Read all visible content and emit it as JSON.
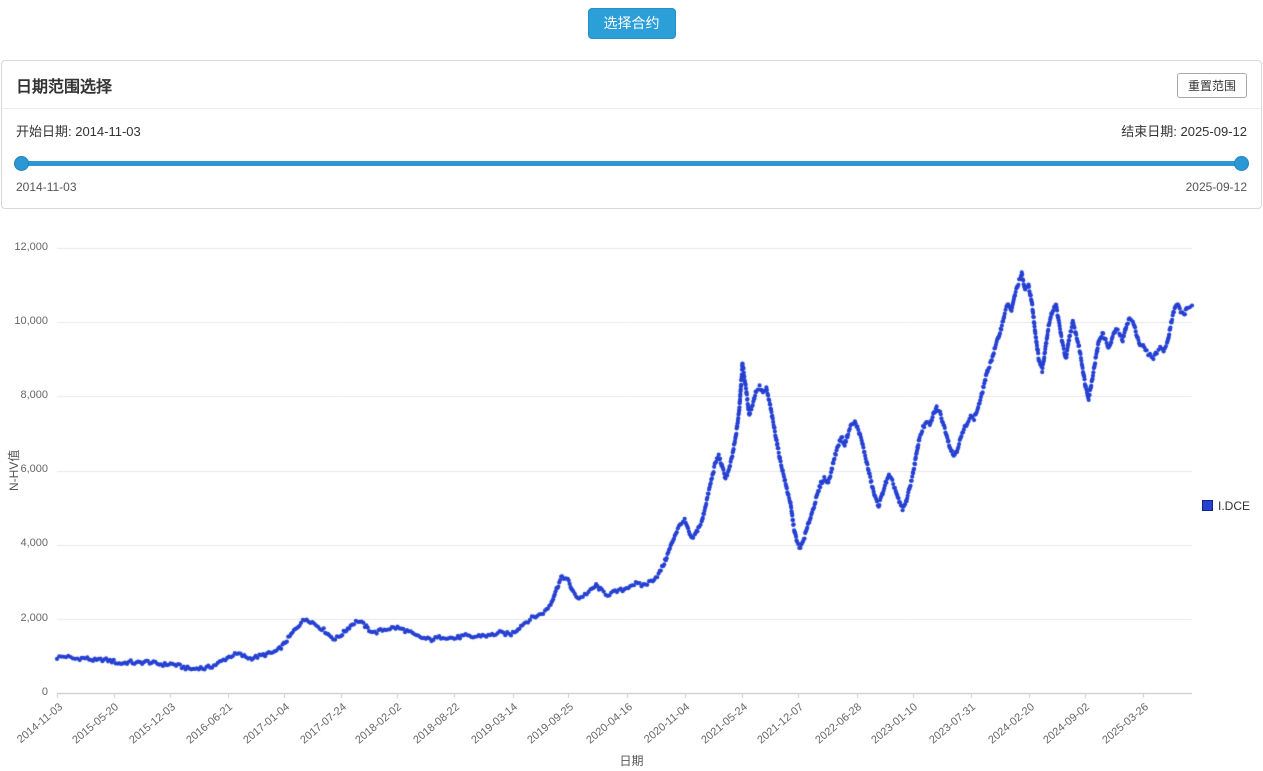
{
  "toolbar": {
    "select_contract_label": "选择合约"
  },
  "date_panel": {
    "title": "日期范围选择",
    "reset_label": "重置范围",
    "start_date_label": "开始日期: 2014-11-03",
    "end_date_label": "结束日期: 2025-09-12",
    "slider_left_label": "2014-11-03",
    "slider_right_label": "2025-09-12",
    "accent_color": "#2b98d5"
  },
  "chart_data": {
    "type": "scatter",
    "title": "",
    "xlabel": "日期",
    "ylabel": "N-HV值",
    "ylim": [
      0,
      12000
    ],
    "grid": true,
    "legend_position": "right",
    "yticks": [
      {
        "v": 0,
        "label": "0"
      },
      {
        "v": 2000,
        "label": "2,000"
      },
      {
        "v": 4000,
        "label": "4,000"
      },
      {
        "v": 6000,
        "label": "6,000"
      },
      {
        "v": 8000,
        "label": "8,000"
      },
      {
        "v": 10000,
        "label": "10,000"
      },
      {
        "v": 12000,
        "label": "12,000"
      }
    ],
    "xticks": [
      {
        "pos": 0.0,
        "label": "2014-11-03"
      },
      {
        "pos": 0.0499,
        "label": "2015-05-20"
      },
      {
        "pos": 0.0996,
        "label": "2015-12-03"
      },
      {
        "pos": 0.1503,
        "label": "2016-06-21"
      },
      {
        "pos": 0.2,
        "label": "2017-01-04"
      },
      {
        "pos": 0.2506,
        "label": "2017-07-24"
      },
      {
        "pos": 0.2993,
        "label": "2018-02-02"
      },
      {
        "pos": 0.35,
        "label": "2018-08-22"
      },
      {
        "pos": 0.4014,
        "label": "2019-03-14"
      },
      {
        "pos": 0.4506,
        "label": "2019-09-25"
      },
      {
        "pos": 0.502,
        "label": "2020-04-16"
      },
      {
        "pos": 0.553,
        "label": "2020-11-04"
      },
      {
        "pos": 0.6036,
        "label": "2021-05-24"
      },
      {
        "pos": 0.6533,
        "label": "2021-12-07"
      },
      {
        "pos": 0.7045,
        "label": "2022-06-28"
      },
      {
        "pos": 0.7539,
        "label": "2023-01-10"
      },
      {
        "pos": 0.8049,
        "label": "2023-07-31"
      },
      {
        "pos": 0.8563,
        "label": "2024-02-20"
      },
      {
        "pos": 0.9055,
        "label": "2024-09-02"
      },
      {
        "pos": 0.9571,
        "label": "2025-03-26"
      }
    ],
    "legend": [
      {
        "name": "I.DCE",
        "color": "#2540d2",
        "border": "#13257e"
      }
    ],
    "series": [
      {
        "name": "I.DCE",
        "color": "#2540d2",
        "x_range_labels": [
          "2014-11-03",
          "2025-09-12"
        ],
        "points": [
          [
            0.0,
            950
          ],
          [
            0.004,
            975
          ],
          [
            0.008,
            990
          ],
          [
            0.012,
            945
          ],
          [
            0.016,
            920
          ],
          [
            0.02,
            935
          ],
          [
            0.025,
            940
          ],
          [
            0.03,
            900
          ],
          [
            0.035,
            870
          ],
          [
            0.04,
            905
          ],
          [
            0.045,
            880
          ],
          [
            0.05,
            850
          ],
          [
            0.055,
            790
          ],
          [
            0.06,
            815
          ],
          [
            0.065,
            835
          ],
          [
            0.07,
            800
          ],
          [
            0.075,
            825
          ],
          [
            0.08,
            845
          ],
          [
            0.085,
            805
          ],
          [
            0.09,
            780
          ],
          [
            0.095,
            765
          ],
          [
            0.1,
            785
          ],
          [
            0.105,
            755
          ],
          [
            0.11,
            705
          ],
          [
            0.115,
            665
          ],
          [
            0.12,
            640
          ],
          [
            0.125,
            685
          ],
          [
            0.13,
            660
          ],
          [
            0.135,
            705
          ],
          [
            0.14,
            765
          ],
          [
            0.145,
            855
          ],
          [
            0.15,
            950
          ],
          [
            0.155,
            1020
          ],
          [
            0.16,
            1050
          ],
          [
            0.165,
            985
          ],
          [
            0.17,
            935
          ],
          [
            0.175,
            965
          ],
          [
            0.18,
            1005
          ],
          [
            0.185,
            1050
          ],
          [
            0.19,
            1085
          ],
          [
            0.195,
            1155
          ],
          [
            0.2,
            1320
          ],
          [
            0.205,
            1520
          ],
          [
            0.21,
            1720
          ],
          [
            0.215,
            1900
          ],
          [
            0.22,
            2000
          ],
          [
            0.225,
            1905
          ],
          [
            0.23,
            1800
          ],
          [
            0.235,
            1700
          ],
          [
            0.24,
            1555
          ],
          [
            0.245,
            1450
          ],
          [
            0.25,
            1555
          ],
          [
            0.255,
            1705
          ],
          [
            0.26,
            1855
          ],
          [
            0.265,
            1950
          ],
          [
            0.27,
            1850
          ],
          [
            0.275,
            1705
          ],
          [
            0.28,
            1625
          ],
          [
            0.285,
            1680
          ],
          [
            0.29,
            1725
          ],
          [
            0.295,
            1750
          ],
          [
            0.3,
            1760
          ],
          [
            0.305,
            1705
          ],
          [
            0.31,
            1650
          ],
          [
            0.315,
            1555
          ],
          [
            0.32,
            1500
          ],
          [
            0.325,
            1460
          ],
          [
            0.33,
            1440
          ],
          [
            0.335,
            1480
          ],
          [
            0.34,
            1520
          ],
          [
            0.345,
            1500
          ],
          [
            0.35,
            1470
          ],
          [
            0.355,
            1510
          ],
          [
            0.36,
            1540
          ],
          [
            0.365,
            1500
          ],
          [
            0.37,
            1525
          ],
          [
            0.375,
            1560
          ],
          [
            0.38,
            1540
          ],
          [
            0.385,
            1580
          ],
          [
            0.39,
            1620
          ],
          [
            0.395,
            1600
          ],
          [
            0.4,
            1585
          ],
          [
            0.405,
            1700
          ],
          [
            0.41,
            1850
          ],
          [
            0.415,
            1950
          ],
          [
            0.42,
            2050
          ],
          [
            0.425,
            2105
          ],
          [
            0.43,
            2200
          ],
          [
            0.435,
            2400
          ],
          [
            0.44,
            2800
          ],
          [
            0.445,
            3150
          ],
          [
            0.45,
            3050
          ],
          [
            0.455,
            2700
          ],
          [
            0.46,
            2550
          ],
          [
            0.465,
            2650
          ],
          [
            0.47,
            2755
          ],
          [
            0.475,
            2900
          ],
          [
            0.48,
            2755
          ],
          [
            0.485,
            2650
          ],
          [
            0.49,
            2705
          ],
          [
            0.495,
            2755
          ],
          [
            0.5,
            2800
          ],
          [
            0.505,
            2900
          ],
          [
            0.51,
            2950
          ],
          [
            0.515,
            2900
          ],
          [
            0.52,
            2950
          ],
          [
            0.525,
            3050
          ],
          [
            0.53,
            3200
          ],
          [
            0.535,
            3500
          ],
          [
            0.54,
            3900
          ],
          [
            0.545,
            4300
          ],
          [
            0.55,
            4600
          ],
          [
            0.553,
            4650
          ],
          [
            0.556,
            4400
          ],
          [
            0.559,
            4150
          ],
          [
            0.562,
            4250
          ],
          [
            0.565,
            4450
          ],
          [
            0.568,
            4600
          ],
          [
            0.571,
            5000
          ],
          [
            0.574,
            5400
          ],
          [
            0.577,
            5800
          ],
          [
            0.58,
            6200
          ],
          [
            0.583,
            6400
          ],
          [
            0.586,
            6100
          ],
          [
            0.589,
            5800
          ],
          [
            0.592,
            6000
          ],
          [
            0.595,
            6400
          ],
          [
            0.598,
            6900
          ],
          [
            0.601,
            7600
          ],
          [
            0.604,
            8900
          ],
          [
            0.607,
            8200
          ],
          [
            0.61,
            7500
          ],
          [
            0.613,
            7800
          ],
          [
            0.616,
            8150
          ],
          [
            0.619,
            8250
          ],
          [
            0.622,
            8100
          ],
          [
            0.625,
            8200
          ],
          [
            0.628,
            7800
          ],
          [
            0.631,
            7300
          ],
          [
            0.634,
            6800
          ],
          [
            0.637,
            6300
          ],
          [
            0.64,
            5900
          ],
          [
            0.643,
            5500
          ],
          [
            0.646,
            5150
          ],
          [
            0.649,
            4500
          ],
          [
            0.652,
            4050
          ],
          [
            0.655,
            3900
          ],
          [
            0.658,
            4150
          ],
          [
            0.661,
            4450
          ],
          [
            0.664,
            4750
          ],
          [
            0.667,
            5050
          ],
          [
            0.67,
            5350
          ],
          [
            0.673,
            5650
          ],
          [
            0.676,
            5800
          ],
          [
            0.679,
            5650
          ],
          [
            0.682,
            5950
          ],
          [
            0.685,
            6350
          ],
          [
            0.688,
            6650
          ],
          [
            0.691,
            6900
          ],
          [
            0.694,
            6700
          ],
          [
            0.697,
            7000
          ],
          [
            0.7,
            7250
          ],
          [
            0.703,
            7300
          ],
          [
            0.706,
            7100
          ],
          [
            0.709,
            6800
          ],
          [
            0.712,
            6400
          ],
          [
            0.715,
            6000
          ],
          [
            0.718,
            5600
          ],
          [
            0.721,
            5250
          ],
          [
            0.724,
            5050
          ],
          [
            0.727,
            5350
          ],
          [
            0.73,
            5650
          ],
          [
            0.733,
            5850
          ],
          [
            0.736,
            5700
          ],
          [
            0.739,
            5450
          ],
          [
            0.742,
            5150
          ],
          [
            0.745,
            4950
          ],
          [
            0.748,
            5150
          ],
          [
            0.751,
            5500
          ],
          [
            0.754,
            5900
          ],
          [
            0.757,
            6400
          ],
          [
            0.76,
            6900
          ],
          [
            0.763,
            7150
          ],
          [
            0.766,
            7300
          ],
          [
            0.769,
            7200
          ],
          [
            0.772,
            7500
          ],
          [
            0.775,
            7700
          ],
          [
            0.778,
            7550
          ],
          [
            0.781,
            7250
          ],
          [
            0.784,
            6950
          ],
          [
            0.787,
            6600
          ],
          [
            0.79,
            6400
          ],
          [
            0.793,
            6550
          ],
          [
            0.796,
            6850
          ],
          [
            0.799,
            7100
          ],
          [
            0.802,
            7300
          ],
          [
            0.805,
            7450
          ],
          [
            0.808,
            7400
          ],
          [
            0.811,
            7650
          ],
          [
            0.814,
            7950
          ],
          [
            0.817,
            8350
          ],
          [
            0.82,
            8700
          ],
          [
            0.823,
            8950
          ],
          [
            0.826,
            9250
          ],
          [
            0.829,
            9550
          ],
          [
            0.832,
            9850
          ],
          [
            0.835,
            10250
          ],
          [
            0.838,
            10500
          ],
          [
            0.841,
            10300
          ],
          [
            0.844,
            10750
          ],
          [
            0.847,
            11050
          ],
          [
            0.85,
            11300
          ],
          [
            0.853,
            10850
          ],
          [
            0.856,
            11000
          ],
          [
            0.859,
            10500
          ],
          [
            0.862,
            9700
          ],
          [
            0.865,
            9000
          ],
          [
            0.868,
            8700
          ],
          [
            0.871,
            9350
          ],
          [
            0.874,
            9950
          ],
          [
            0.877,
            10300
          ],
          [
            0.88,
            10500
          ],
          [
            0.883,
            9950
          ],
          [
            0.886,
            9400
          ],
          [
            0.889,
            9000
          ],
          [
            0.892,
            9600
          ],
          [
            0.895,
            10000
          ],
          [
            0.898,
            9650
          ],
          [
            0.901,
            9250
          ],
          [
            0.904,
            8700
          ],
          [
            0.906,
            8300
          ],
          [
            0.909,
            7950
          ],
          [
            0.912,
            8450
          ],
          [
            0.915,
            9000
          ],
          [
            0.918,
            9500
          ],
          [
            0.921,
            9700
          ],
          [
            0.924,
            9500
          ],
          [
            0.927,
            9300
          ],
          [
            0.93,
            9600
          ],
          [
            0.933,
            9800
          ],
          [
            0.936,
            9700
          ],
          [
            0.939,
            9500
          ],
          [
            0.942,
            9900
          ],
          [
            0.945,
            10100
          ],
          [
            0.948,
            10000
          ],
          [
            0.951,
            9700
          ],
          [
            0.954,
            9400
          ],
          [
            0.957,
            9350
          ],
          [
            0.96,
            9200
          ],
          [
            0.963,
            9100
          ],
          [
            0.966,
            9050
          ],
          [
            0.969,
            9200
          ],
          [
            0.972,
            9300
          ],
          [
            0.975,
            9250
          ],
          [
            0.978,
            9400
          ],
          [
            0.981,
            9900
          ],
          [
            0.984,
            10300
          ],
          [
            0.987,
            10500
          ],
          [
            0.99,
            10300
          ],
          [
            0.993,
            10200
          ],
          [
            0.996,
            10400
          ],
          [
            1.0,
            10450
          ]
        ]
      }
    ]
  }
}
